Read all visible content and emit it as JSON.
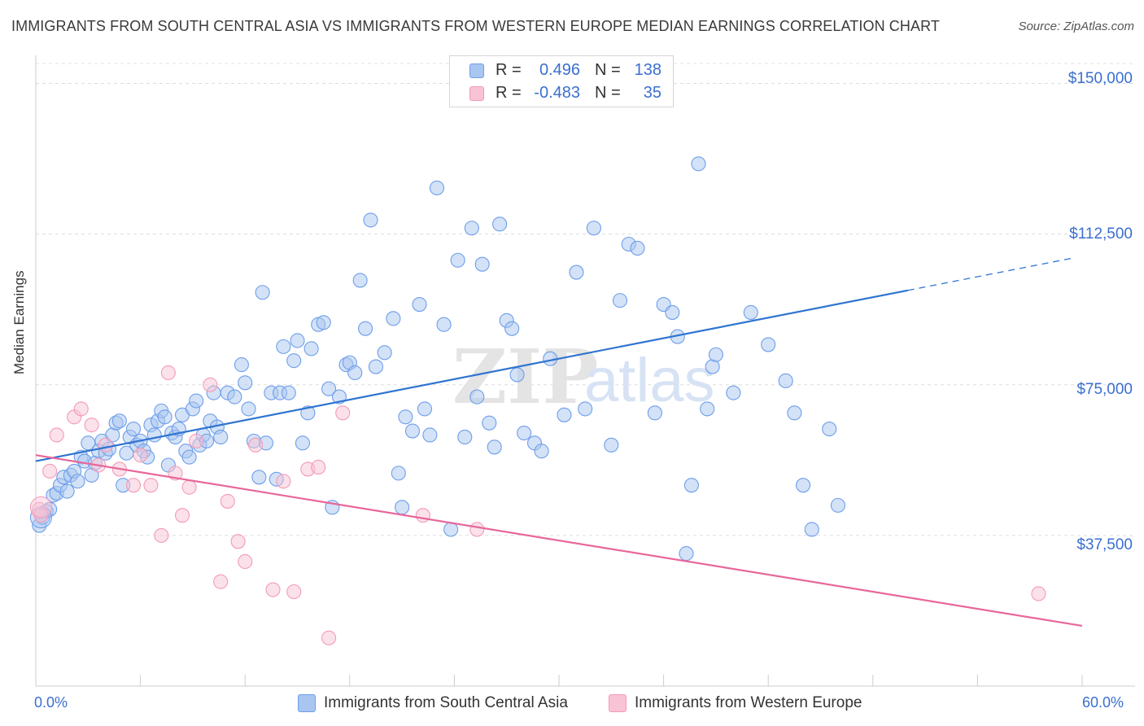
{
  "chart_data": {
    "type": "scatter",
    "title": "IMMIGRANTS FROM SOUTH CENTRAL ASIA VS IMMIGRANTS FROM WESTERN EUROPE MEDIAN EARNINGS CORRELATION CHART",
    "source": "Source: ZipAtlas.com",
    "xlabel": "",
    "ylabel": "Median Earnings",
    "xlim": [
      0,
      60
    ],
    "ylim": [
      0,
      157000
    ],
    "x_tick_labels": [
      "0.0%",
      "60.0%"
    ],
    "y_ticks": [
      {
        "value": 37500,
        "label": "$37,500"
      },
      {
        "value": 75000,
        "label": "$75,000"
      },
      {
        "value": 112500,
        "label": "$112,500"
      },
      {
        "value": 150000,
        "label": "$150,000"
      }
    ],
    "watermark": {
      "zip": "ZIP",
      "atlas": "atlas"
    },
    "stats": [
      {
        "r_label": "R =",
        "r": "0.496",
        "n_label": "N =",
        "n": "138"
      },
      {
        "r_label": "R =",
        "r": "-0.483",
        "n_label": "N =",
        "n": "35"
      }
    ],
    "series": [
      {
        "name": "Immigrants from South Central Asia",
        "color": "#6d9eeb",
        "fill": "#a9c6f0",
        "line_color": "#2f74d0",
        "trend": {
          "x0": 0,
          "y0": 56000,
          "x1": 50,
          "y1": 98500,
          "dash_to_x": 59.5
        },
        "points": [
          [
            0.2,
            40000
          ],
          [
            0.4,
            42000
          ],
          [
            0.6,
            43500
          ],
          [
            0.8,
            44000
          ],
          [
            1,
            47500
          ],
          [
            1.2,
            48000
          ],
          [
            1.4,
            50000
          ],
          [
            1.6,
            52000
          ],
          [
            1.8,
            48500
          ],
          [
            2,
            52500
          ],
          [
            2.2,
            53500
          ],
          [
            2.4,
            51000
          ],
          [
            2.6,
            57000
          ],
          [
            2.8,
            56000
          ],
          [
            3,
            60500
          ],
          [
            3.2,
            52500
          ],
          [
            3.4,
            55500
          ],
          [
            3.6,
            58500
          ],
          [
            3.8,
            61000
          ],
          [
            4,
            58000
          ],
          [
            4.2,
            59000
          ],
          [
            4.4,
            62500
          ],
          [
            4.6,
            65500
          ],
          [
            4.8,
            66000
          ],
          [
            5,
            50000
          ],
          [
            5.2,
            58000
          ],
          [
            5.4,
            62000
          ],
          [
            5.6,
            64000
          ],
          [
            5.8,
            60000
          ],
          [
            6,
            61000
          ],
          [
            6.2,
            58500
          ],
          [
            6.4,
            57000
          ],
          [
            6.6,
            65000
          ],
          [
            6.8,
            62500
          ],
          [
            7,
            66000
          ],
          [
            7.2,
            68500
          ],
          [
            7.4,
            67000
          ],
          [
            7.6,
            55000
          ],
          [
            7.8,
            63000
          ],
          [
            8,
            62000
          ],
          [
            8.2,
            64000
          ],
          [
            8.4,
            67500
          ],
          [
            8.6,
            58500
          ],
          [
            8.8,
            57000
          ],
          [
            9,
            69000
          ],
          [
            9.2,
            71000
          ],
          [
            9.4,
            60000
          ],
          [
            9.6,
            62500
          ],
          [
            9.8,
            61000
          ],
          [
            10,
            66000
          ],
          [
            10.2,
            73000
          ],
          [
            10.4,
            64500
          ],
          [
            10.6,
            62000
          ],
          [
            11,
            73000
          ],
          [
            11.4,
            72000
          ],
          [
            11.8,
            80000
          ],
          [
            12,
            75500
          ],
          [
            12.2,
            69000
          ],
          [
            12.5,
            61000
          ],
          [
            12.8,
            52000
          ],
          [
            13,
            98000
          ],
          [
            13.2,
            60500
          ],
          [
            13.5,
            73000
          ],
          [
            13.8,
            51500
          ],
          [
            14,
            73000
          ],
          [
            14.2,
            84500
          ],
          [
            14.5,
            73000
          ],
          [
            14.8,
            81000
          ],
          [
            15,
            86000
          ],
          [
            15.3,
            60500
          ],
          [
            15.6,
            68000
          ],
          [
            15.8,
            84000
          ],
          [
            16.2,
            90000
          ],
          [
            16.5,
            90500
          ],
          [
            16.8,
            74000
          ],
          [
            17,
            44500
          ],
          [
            17.4,
            72000
          ],
          [
            17.8,
            80000
          ],
          [
            18,
            80500
          ],
          [
            18.3,
            78000
          ],
          [
            18.6,
            101000
          ],
          [
            18.9,
            89000
          ],
          [
            19.2,
            116000
          ],
          [
            19.5,
            79500
          ],
          [
            20,
            83000
          ],
          [
            20.5,
            91500
          ],
          [
            20.8,
            53000
          ],
          [
            21,
            44500
          ],
          [
            21.2,
            67000
          ],
          [
            21.6,
            63500
          ],
          [
            22,
            95000
          ],
          [
            22.3,
            69000
          ],
          [
            22.6,
            62500
          ],
          [
            23,
            124000
          ],
          [
            23.4,
            90000
          ],
          [
            23.8,
            39000
          ],
          [
            24.2,
            106000
          ],
          [
            24.6,
            62000
          ],
          [
            25,
            114000
          ],
          [
            25.3,
            72000
          ],
          [
            25.6,
            105000
          ],
          [
            26,
            65500
          ],
          [
            26.3,
            59500
          ],
          [
            26.6,
            115000
          ],
          [
            27,
            91000
          ],
          [
            27.3,
            89000
          ],
          [
            27.6,
            77500
          ],
          [
            28,
            63000
          ],
          [
            28.6,
            60500
          ],
          [
            29,
            58500
          ],
          [
            29.5,
            81500
          ],
          [
            30.3,
            67500
          ],
          [
            31,
            103000
          ],
          [
            31.5,
            69000
          ],
          [
            32,
            114000
          ],
          [
            33,
            60000
          ],
          [
            33.5,
            96000
          ],
          [
            34,
            110000
          ],
          [
            34.5,
            109000
          ],
          [
            35.5,
            68000
          ],
          [
            36,
            95000
          ],
          [
            36.5,
            93000
          ],
          [
            36.8,
            87000
          ],
          [
            37.3,
            33000
          ],
          [
            37.6,
            50000
          ],
          [
            38,
            130000
          ],
          [
            38.5,
            69000
          ],
          [
            38.8,
            79500
          ],
          [
            39,
            82500
          ],
          [
            40,
            73000
          ],
          [
            41,
            93000
          ],
          [
            42,
            85000
          ],
          [
            43,
            76000
          ],
          [
            43.5,
            68000
          ],
          [
            44,
            50000
          ],
          [
            44.5,
            39000
          ],
          [
            45.5,
            64000
          ],
          [
            46,
            45000
          ]
        ]
      },
      {
        "name": "Immigrants from Western Europe",
        "color": "#f49ab8",
        "fill": "#f8c3d5",
        "line_color": "#e8679a",
        "trend": {
          "x0": 0,
          "y0": 57500,
          "x1": 60,
          "y1": 15000
        },
        "points": [
          [
            0.2,
            44000
          ],
          [
            0.8,
            53500
          ],
          [
            1.2,
            62500
          ],
          [
            2.2,
            67000
          ],
          [
            2.6,
            69000
          ],
          [
            3.2,
            65000
          ],
          [
            3.6,
            55000
          ],
          [
            4,
            60000
          ],
          [
            4.8,
            54000
          ],
          [
            5.6,
            50000
          ],
          [
            6,
            57500
          ],
          [
            6.6,
            50000
          ],
          [
            7.2,
            37500
          ],
          [
            7.6,
            78000
          ],
          [
            8,
            53000
          ],
          [
            8.4,
            42500
          ],
          [
            8.8,
            49500
          ],
          [
            9.2,
            61000
          ],
          [
            10,
            75000
          ],
          [
            10.6,
            26000
          ],
          [
            11,
            46000
          ],
          [
            11.6,
            36000
          ],
          [
            12,
            31000
          ],
          [
            12.6,
            60000
          ],
          [
            13.6,
            24000
          ],
          [
            14.2,
            51000
          ],
          [
            14.8,
            23500
          ],
          [
            15.6,
            54000
          ],
          [
            16.2,
            54500
          ],
          [
            16.8,
            12000
          ],
          [
            17.6,
            68000
          ],
          [
            22.2,
            42500
          ],
          [
            25.3,
            39000
          ],
          [
            57.5,
            23000
          ],
          [
            0.3,
            42500
          ]
        ]
      }
    ]
  }
}
